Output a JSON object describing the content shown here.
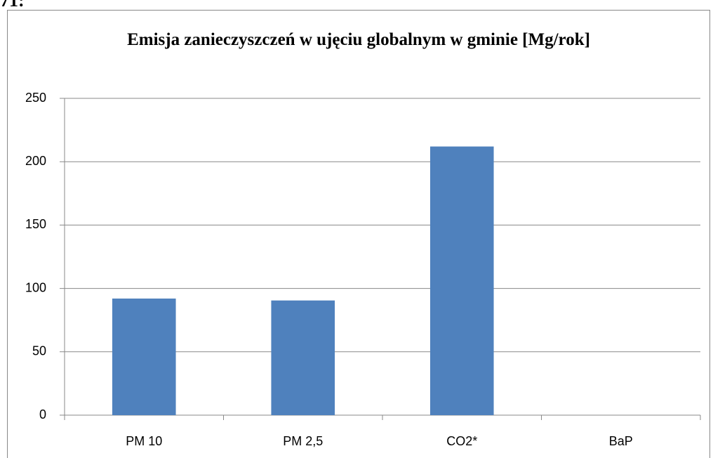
{
  "heading": "71:",
  "chart_data": {
    "type": "bar",
    "title": "Emisja zanieczyszczeń w ujęciu globalnym w gminie [Mg/rok]",
    "categories": [
      "PM 10",
      "PM 2,5",
      "CO2*",
      "BaP"
    ],
    "values": [
      92,
      90.5,
      212,
      0
    ],
    "color": "#4f81bd",
    "ylim": [
      0,
      250
    ],
    "yticks": [
      0,
      50,
      100,
      150,
      200,
      250
    ],
    "grid": true
  }
}
